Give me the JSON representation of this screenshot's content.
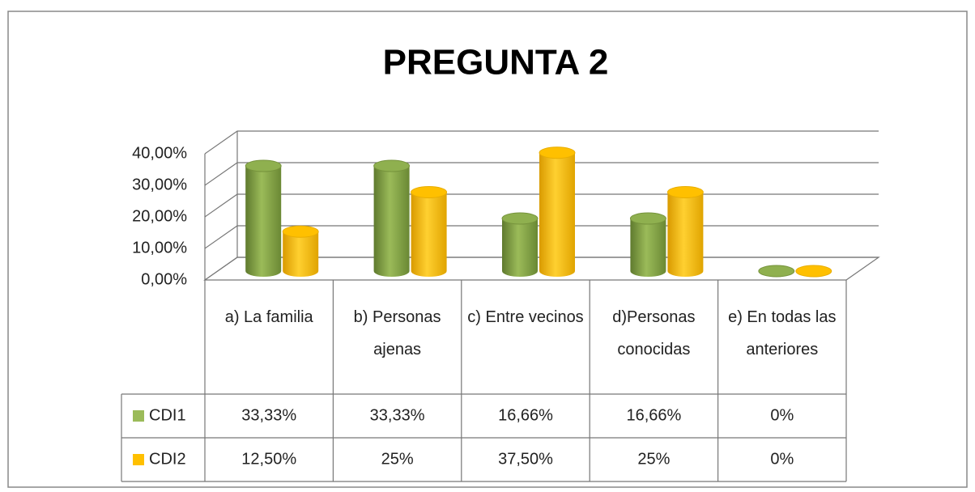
{
  "chart_data": {
    "type": "bar3d",
    "title": "PREGUNTA 2",
    "categories": [
      "a) La familia",
      "b) Personas ajenas",
      "c) Entre vecinos",
      "d)Personas conocidas",
      "e) En todas las anteriores"
    ],
    "series": [
      {
        "name": "CDI1",
        "color": "#9bbb59",
        "values": [
          33.33,
          33.33,
          16.66,
          16.66,
          0
        ],
        "value_labels": [
          "33,33%",
          "33,33%",
          "16,66%",
          "16,66%",
          "0%"
        ]
      },
      {
        "name": "CDI2",
        "color": "#ffc000",
        "values": [
          12.5,
          25,
          37.5,
          25,
          0
        ],
        "value_labels": [
          "12,50%",
          "25%",
          "37,50%",
          "25%",
          "0%"
        ]
      }
    ],
    "ylim": [
      0,
      40
    ],
    "yticks": [
      {
        "value": 0,
        "label": "0,00%"
      },
      {
        "value": 10,
        "label": "10,00%"
      },
      {
        "value": 20,
        "label": "20,00%"
      },
      {
        "value": 30,
        "label": "30,00%"
      },
      {
        "value": 40,
        "label": "40,00%"
      }
    ],
    "grid": true
  }
}
